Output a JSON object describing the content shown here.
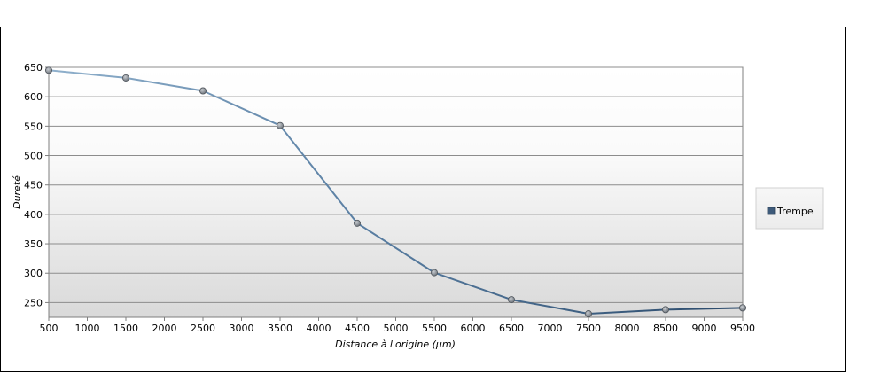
{
  "chart_data": {
    "type": "line",
    "title": "",
    "xlabel": "Distance à l'origine (µm)",
    "ylabel": "Dureté",
    "x": [
      500,
      1500,
      2500,
      3500,
      4500,
      5500,
      6500,
      7500,
      8500,
      9500
    ],
    "xlim": [
      500,
      9500
    ],
    "ylim": [
      225,
      650
    ],
    "xticks": [
      500,
      1000,
      1500,
      2000,
      2500,
      3000,
      3500,
      4000,
      4500,
      5000,
      5500,
      6000,
      6500,
      7000,
      7500,
      8000,
      8500,
      9000,
      9500
    ],
    "yticks": [
      250,
      300,
      350,
      400,
      450,
      500,
      550,
      600,
      650
    ],
    "grid": true,
    "legend_position": "right",
    "series": [
      {
        "name": "Trempe",
        "values": [
          645,
          632,
          610,
          551,
          385,
          301,
          255,
          231,
          238,
          241
        ],
        "color_start": "#8fb0cc",
        "color_end": "#2b4a6b",
        "marker_color": "#8a8f96"
      }
    ]
  }
}
